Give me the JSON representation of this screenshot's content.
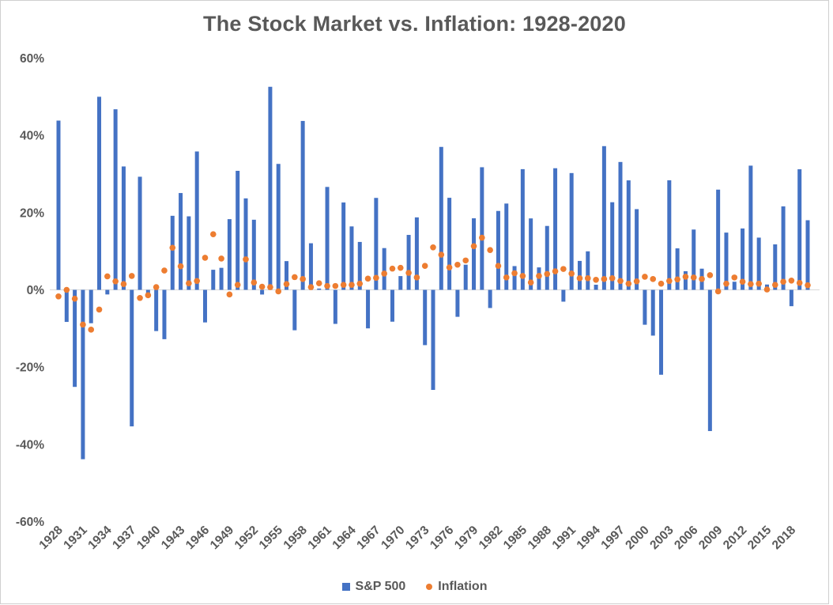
{
  "title": "The Stock Market vs. Inflation: 1928-2020",
  "legend": {
    "sp500": "S&P 500",
    "inflation": "Inflation"
  },
  "colors": {
    "sp500_bar": "#4472C4",
    "inflation_dot": "#ED7D31",
    "text": "#595959",
    "zero_line": "#D9D9D9",
    "border": "#CFCFCF",
    "background": "#FFFFFF"
  },
  "y_axis": {
    "tick_labels": [
      "60%",
      "40%",
      "20%",
      "0%",
      "-20%",
      "-40%",
      "-60%"
    ],
    "tick_values": [
      60,
      40,
      20,
      0,
      -20,
      -40,
      -60
    ]
  },
  "x_axis": {
    "tick_years": [
      1928,
      1931,
      1934,
      1937,
      1940,
      1943,
      1946,
      1949,
      1952,
      1955,
      1958,
      1961,
      1964,
      1967,
      1970,
      1973,
      1976,
      1979,
      1982,
      1985,
      1988,
      1991,
      1994,
      1997,
      2000,
      2003,
      2006,
      2009,
      2012,
      2015,
      2018
    ]
  },
  "chart_data": {
    "type": "bar",
    "title": "The Stock Market vs. Inflation: 1928-2020",
    "xlabel": "",
    "ylabel": "",
    "ylim": [
      -60,
      60
    ],
    "y_tick_step": 20,
    "grid": false,
    "legend_position": "bottom",
    "x": [
      1928,
      1929,
      1930,
      1931,
      1932,
      1933,
      1934,
      1935,
      1936,
      1937,
      1938,
      1939,
      1940,
      1941,
      1942,
      1943,
      1944,
      1945,
      1946,
      1947,
      1948,
      1949,
      1950,
      1951,
      1952,
      1953,
      1954,
      1955,
      1956,
      1957,
      1958,
      1959,
      1960,
      1961,
      1962,
      1963,
      1964,
      1965,
      1966,
      1967,
      1968,
      1969,
      1970,
      1971,
      1972,
      1973,
      1974,
      1975,
      1976,
      1977,
      1978,
      1979,
      1980,
      1981,
      1982,
      1983,
      1984,
      1985,
      1986,
      1987,
      1988,
      1989,
      1990,
      1991,
      1992,
      1993,
      1994,
      1995,
      1996,
      1997,
      1998,
      1999,
      2000,
      2001,
      2002,
      2003,
      2004,
      2005,
      2006,
      2007,
      2008,
      2009,
      2010,
      2011,
      2012,
      2013,
      2014,
      2015,
      2016,
      2017,
      2018,
      2019,
      2020
    ],
    "series": [
      {
        "name": "S&P 500",
        "type": "bar",
        "color": "#4472C4",
        "unit": "%",
        "values": [
          43.81,
          -8.3,
          -25.12,
          -43.84,
          -8.64,
          49.98,
          -1.19,
          46.74,
          31.94,
          -35.34,
          29.28,
          -1.1,
          -10.67,
          -12.77,
          19.17,
          25.06,
          19.03,
          35.82,
          -8.43,
          5.2,
          5.7,
          18.3,
          30.81,
          23.68,
          18.15,
          -1.21,
          52.56,
          32.6,
          7.44,
          -10.46,
          43.72,
          12.06,
          0.34,
          26.64,
          -8.81,
          22.61,
          16.42,
          12.4,
          -9.97,
          23.8,
          10.81,
          -8.24,
          3.56,
          14.22,
          18.76,
          -14.31,
          -25.9,
          37.0,
          23.83,
          -6.98,
          6.51,
          18.52,
          31.74,
          -4.7,
          20.42,
          22.34,
          6.15,
          31.24,
          18.49,
          5.81,
          16.54,
          31.48,
          -3.06,
          30.23,
          7.49,
          9.97,
          1.33,
          37.2,
          22.68,
          33.1,
          28.34,
          20.89,
          -9.03,
          -11.85,
          -21.97,
          28.36,
          10.74,
          4.83,
          15.61,
          5.48,
          -36.55,
          25.94,
          14.82,
          2.1,
          15.89,
          32.15,
          13.52,
          1.38,
          11.77,
          21.61,
          -4.23,
          31.21,
          18.02
        ]
      },
      {
        "name": "Inflation",
        "type": "scatter",
        "color": "#ED7D31",
        "unit": "%",
        "values": [
          -1.7,
          0.0,
          -2.3,
          -9.0,
          -10.3,
          -5.1,
          3.5,
          2.2,
          1.5,
          3.6,
          -2.1,
          -1.4,
          0.7,
          5.0,
          10.9,
          6.1,
          1.7,
          2.3,
          8.3,
          14.4,
          8.1,
          -1.2,
          1.3,
          7.9,
          1.9,
          0.8,
          0.7,
          -0.4,
          1.5,
          3.3,
          2.8,
          0.7,
          1.7,
          1.0,
          1.0,
          1.3,
          1.3,
          1.6,
          2.9,
          3.1,
          4.2,
          5.5,
          5.7,
          4.4,
          3.2,
          6.2,
          11.0,
          9.1,
          5.8,
          6.5,
          7.6,
          11.3,
          13.5,
          10.3,
          6.2,
          3.2,
          4.3,
          3.6,
          1.9,
          3.6,
          4.1,
          4.8,
          5.4,
          4.2,
          3.0,
          3.0,
          2.6,
          2.8,
          3.0,
          2.3,
          1.6,
          2.2,
          3.4,
          2.8,
          1.6,
          2.3,
          2.7,
          3.4,
          3.2,
          2.8,
          3.8,
          -0.4,
          1.6,
          3.2,
          2.1,
          1.5,
          1.6,
          0.1,
          1.3,
          2.1,
          2.4,
          1.8,
          1.2
        ]
      }
    ]
  }
}
